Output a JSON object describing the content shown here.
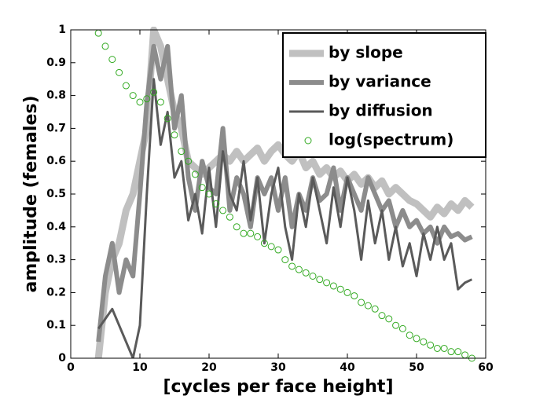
{
  "chart_data": {
    "type": "line",
    "xlabel": "[cycles per face height]",
    "ylabel": "amplitude (females)",
    "x": [
      4,
      5,
      6,
      7,
      8,
      9,
      10,
      11,
      12,
      13,
      14,
      15,
      16,
      17,
      18,
      19,
      20,
      21,
      22,
      23,
      24,
      25,
      26,
      27,
      28,
      29,
      30,
      31,
      32,
      33,
      34,
      35,
      36,
      37,
      38,
      39,
      40,
      41,
      42,
      43,
      44,
      45,
      46,
      47,
      48,
      49,
      50,
      51,
      52,
      53,
      54,
      55,
      56,
      57,
      58
    ],
    "series": [
      {
        "name": "by slope",
        "color": "#c0c0c0",
        "line_width": 9,
        "values": [
          0,
          0.2,
          0.3,
          0.35,
          0.45,
          0.5,
          0.6,
          0.7,
          1.0,
          0.95,
          0.85,
          0.75,
          0.7,
          0.6,
          0.58,
          0.56,
          0.58,
          0.6,
          0.62,
          0.6,
          0.63,
          0.6,
          0.62,
          0.64,
          0.6,
          0.63,
          0.65,
          0.62,
          0.6,
          0.63,
          0.58,
          0.6,
          0.56,
          0.58,
          0.55,
          0.57,
          0.54,
          0.56,
          0.53,
          0.55,
          0.52,
          0.54,
          0.5,
          0.52,
          0.5,
          0.48,
          0.47,
          0.45,
          0.43,
          0.46,
          0.44,
          0.47,
          0.45,
          0.48,
          0.46
        ]
      },
      {
        "name": "by variance",
        "color": "#8c8c8c",
        "line_width": 6,
        "values": [
          0.05,
          0.25,
          0.35,
          0.2,
          0.3,
          0.25,
          0.5,
          0.78,
          0.95,
          0.85,
          0.95,
          0.7,
          0.8,
          0.55,
          0.45,
          0.6,
          0.52,
          0.5,
          0.7,
          0.45,
          0.55,
          0.5,
          0.4,
          0.55,
          0.5,
          0.55,
          0.45,
          0.55,
          0.4,
          0.5,
          0.45,
          0.55,
          0.48,
          0.5,
          0.58,
          0.45,
          0.55,
          0.5,
          0.45,
          0.55,
          0.5,
          0.45,
          0.48,
          0.4,
          0.45,
          0.4,
          0.42,
          0.38,
          0.4,
          0.35,
          0.4,
          0.37,
          0.38,
          0.36,
          0.37
        ]
      },
      {
        "name": "by diffusion",
        "color": "#5a5a5a",
        "line_width": 3,
        "values": [
          0.09,
          0.12,
          0.15,
          0.1,
          0.05,
          0,
          0.1,
          0.5,
          0.85,
          0.65,
          0.75,
          0.55,
          0.6,
          0.42,
          0.5,
          0.38,
          0.58,
          0.4,
          0.63,
          0.5,
          0.45,
          0.6,
          0.42,
          0.55,
          0.35,
          0.5,
          0.58,
          0.4,
          0.3,
          0.5,
          0.4,
          0.55,
          0.45,
          0.35,
          0.52,
          0.4,
          0.55,
          0.45,
          0.3,
          0.48,
          0.35,
          0.45,
          0.3,
          0.4,
          0.28,
          0.35,
          0.25,
          0.38,
          0.3,
          0.4,
          0.3,
          0.35,
          0.21,
          0.23,
          0.24
        ]
      },
      {
        "name": "log(spectrum)",
        "color": "#33aa22",
        "marker": "circle",
        "values": [
          0.99,
          0.95,
          0.91,
          0.87,
          0.83,
          0.8,
          0.78,
          0.79,
          0.81,
          0.78,
          0.73,
          0.68,
          0.63,
          0.6,
          0.56,
          0.52,
          0.5,
          0.47,
          0.45,
          0.43,
          0.4,
          0.38,
          0.38,
          0.37,
          0.35,
          0.34,
          0.33,
          0.3,
          0.28,
          0.27,
          0.26,
          0.25,
          0.24,
          0.23,
          0.22,
          0.21,
          0.2,
          0.19,
          0.17,
          0.16,
          0.15,
          0.13,
          0.12,
          0.1,
          0.09,
          0.07,
          0.06,
          0.05,
          0.04,
          0.03,
          0.03,
          0.02,
          0.02,
          0.01,
          0
        ]
      }
    ],
    "xlim": [
      0,
      60
    ],
    "xticks": [
      0,
      10,
      20,
      30,
      40,
      50,
      60
    ],
    "ylim": [
      0,
      1
    ],
    "yticks": [
      0,
      0.1,
      0.2,
      0.3,
      0.4,
      0.5,
      0.6,
      0.7,
      0.8,
      0.9,
      1
    ],
    "legend": "top-right"
  }
}
